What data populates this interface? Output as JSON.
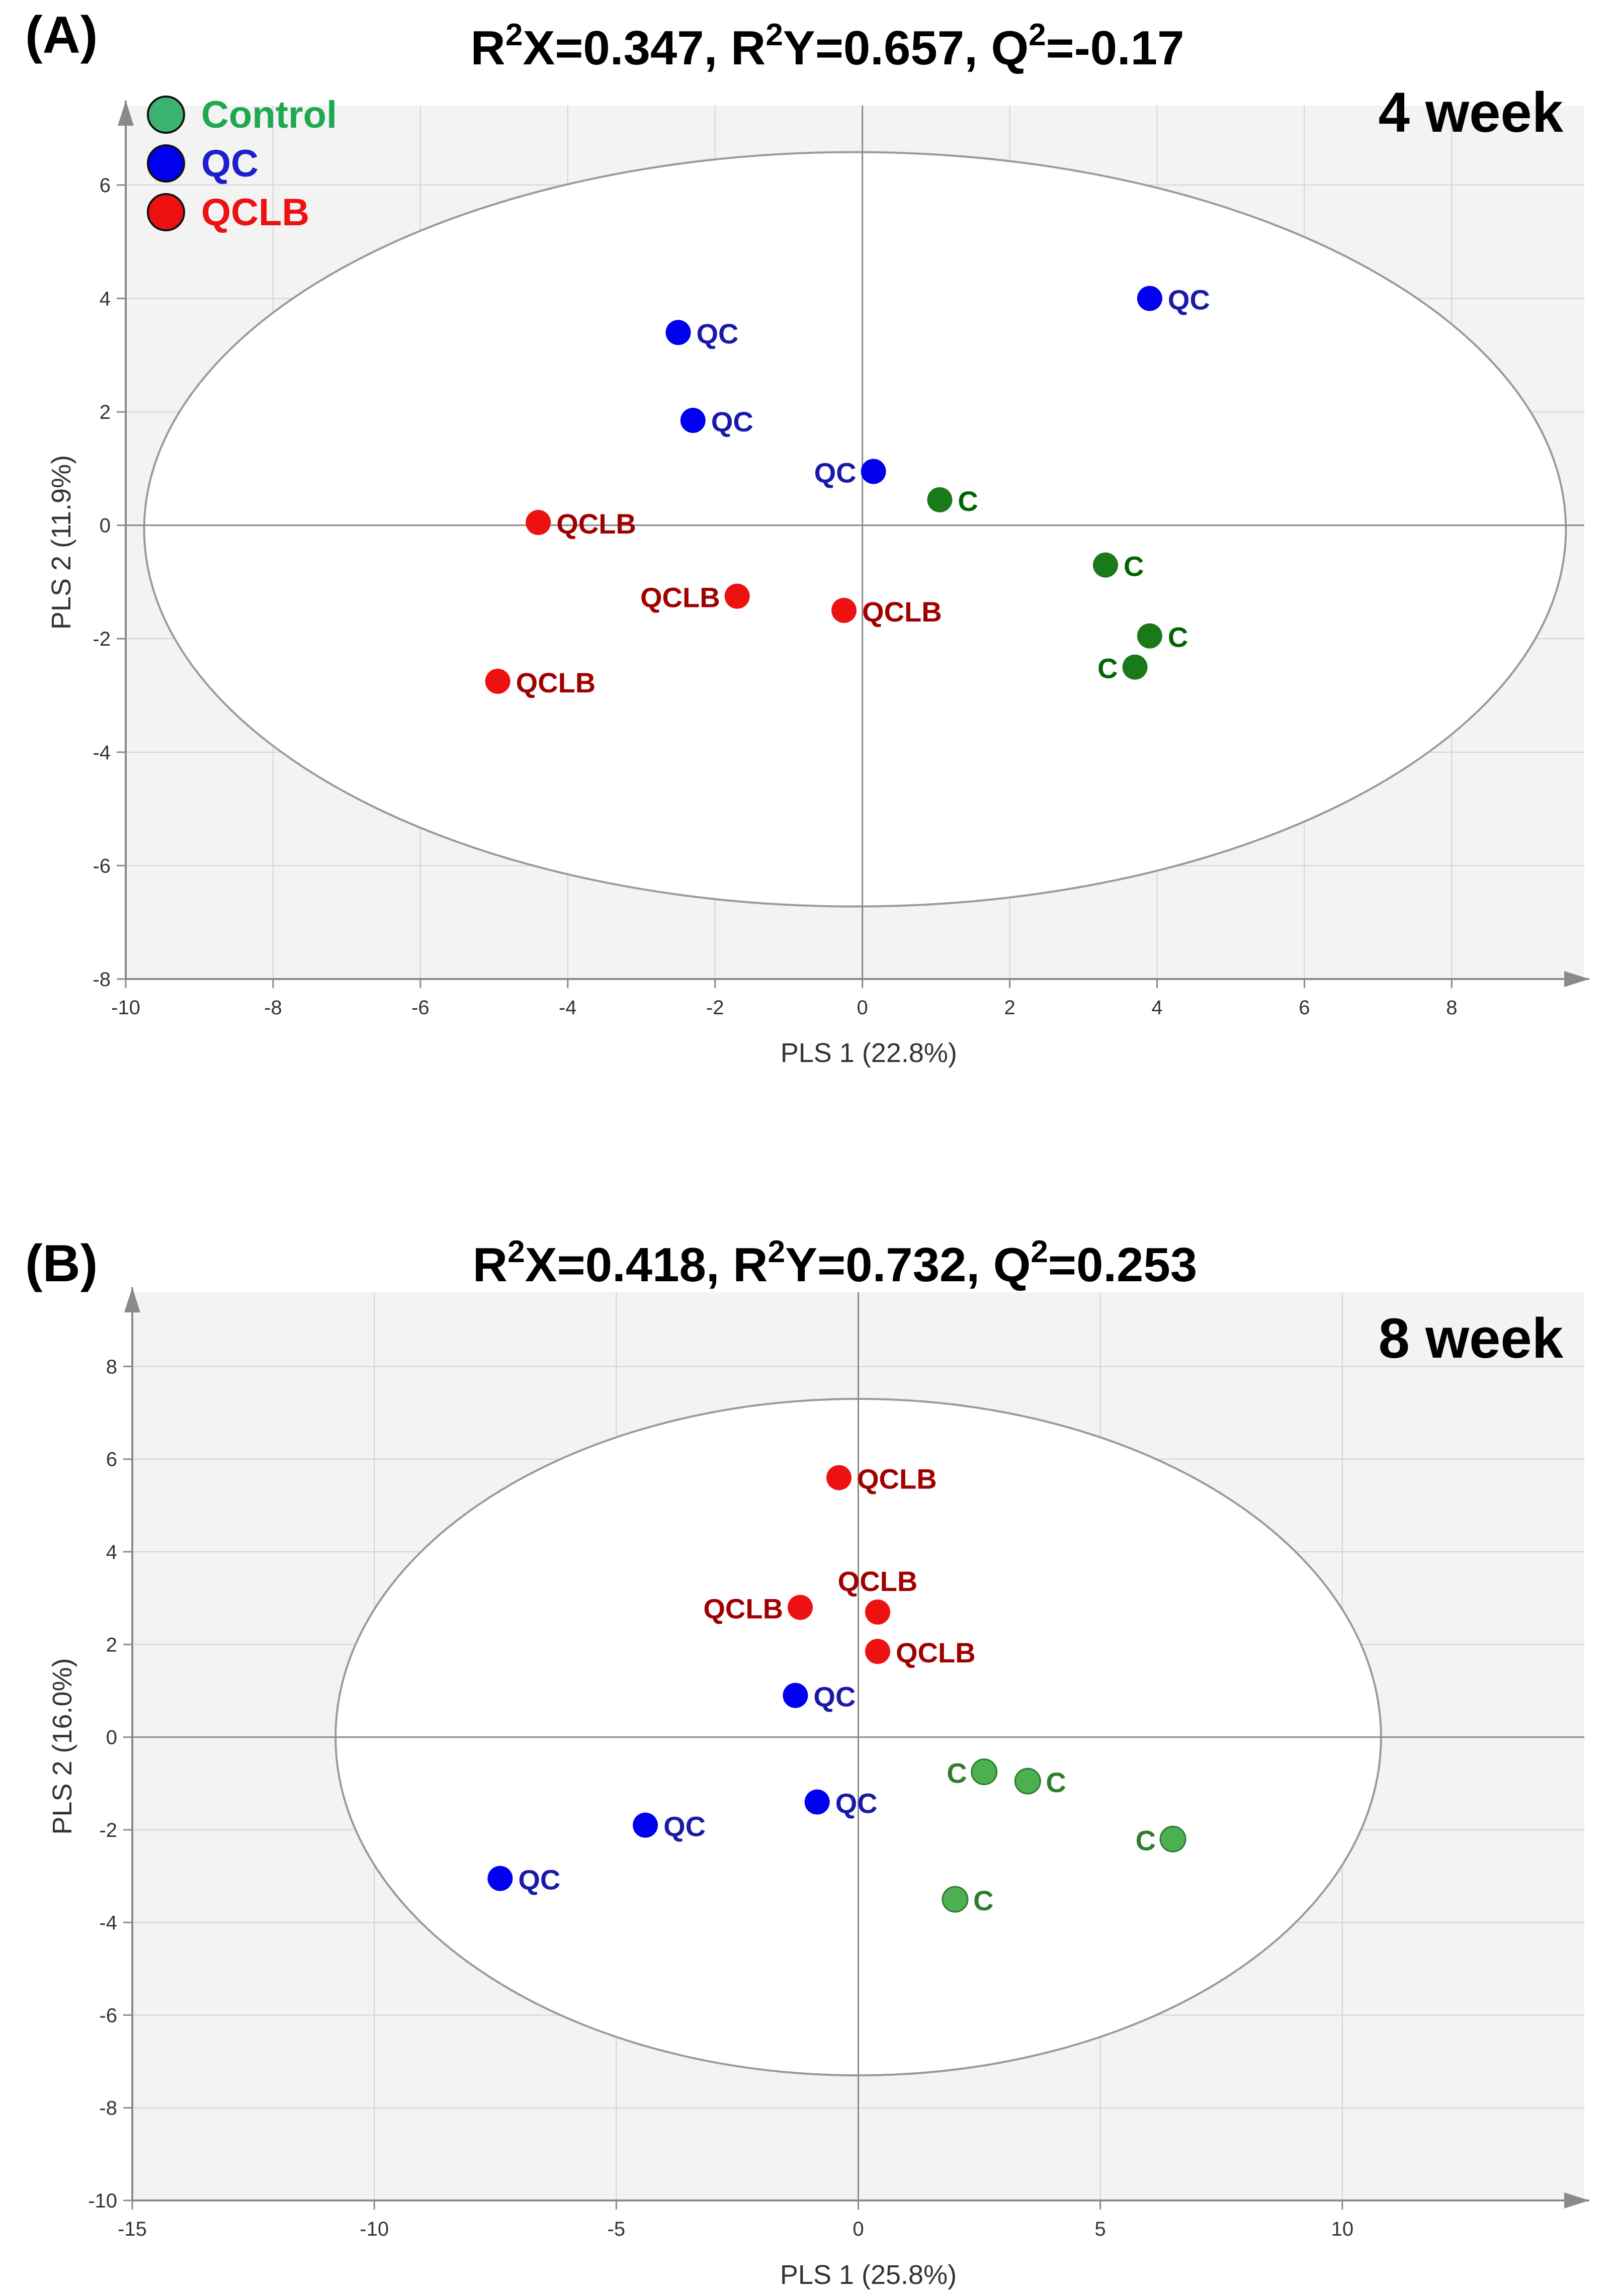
{
  "figure": {
    "panels": [
      {
        "id": "A",
        "panel_label": "(A)",
        "stats": {
          "parts": [
            {
              "base": "R",
              "sup": "2",
              "rest": "X=0.347,"
            },
            {
              "base": "R",
              "sup": "2",
              "rest": "Y=0.657,"
            },
            {
              "base": "Q",
              "sup": "2",
              "rest": "=-0.17"
            }
          ]
        },
        "time_label": "4 week"
      },
      {
        "id": "B",
        "panel_label": "(B)",
        "stats": {
          "parts": [
            {
              "base": "R",
              "sup": "2",
              "rest": "X=0.418,"
            },
            {
              "base": "R",
              "sup": "2",
              "rest": "Y=0.732,"
            },
            {
              "base": "Q",
              "sup": "2",
              "rest": "=0.253"
            }
          ]
        },
        "time_label": "8 week"
      }
    ],
    "legend": [
      {
        "label": "Control",
        "color": "#3cb371",
        "text_color": "#1fa84f"
      },
      {
        "label": "QC",
        "color": "#0000ee",
        "text_color": "#1e1ecc"
      },
      {
        "label": "QCLB",
        "color": "#ee1111",
        "text_color": "#ee1111"
      }
    ],
    "colors": {
      "plot_bg": "#f3f3f3",
      "grid": "#d4d4d4",
      "axis": "#8a8a8a",
      "ellipse": "#9a9a9a",
      "label_control_4w": "#006400",
      "label_control_8w": "#2e7d2e",
      "label_qc": "#1a1aaa",
      "label_qclb": "#a00000",
      "point_control_4w": "#1a7a1a",
      "point_control_8w": "#4caf50"
    }
  },
  "chart_data": [
    {
      "type": "scatter",
      "title": "R2X=0.347, R2Y=0.657, Q2=-0.17",
      "subtitle": "4 week",
      "xlabel": "PLS 1 (22.8%)",
      "ylabel": "PLS 2 (11.9%)",
      "xlim": [
        -10,
        9.8
      ],
      "ylim": [
        -8,
        7.4
      ],
      "xticks": [
        -10,
        -8,
        -6,
        -4,
        -2,
        0,
        2,
        4,
        6,
        8
      ],
      "yticks": [
        -8,
        -6,
        -4,
        -2,
        0,
        2,
        4,
        6
      ],
      "ellipse": {
        "cx": -0.1,
        "cy": -0.07,
        "rx": 9.65,
        "ry": 6.65
      },
      "grid": true,
      "legend_position": "top-left",
      "series": [
        {
          "name": "QC",
          "label": "QC",
          "points": [
            {
              "x": 3.9,
              "y": 4.0,
              "label_side": "right"
            },
            {
              "x": -2.5,
              "y": 3.4,
              "label_side": "right"
            },
            {
              "x": -2.3,
              "y": 1.85,
              "label_side": "right"
            },
            {
              "x": 0.15,
              "y": 0.95,
              "label_side": "left"
            }
          ]
        },
        {
          "name": "Control",
          "label": "C",
          "points": [
            {
              "x": 1.05,
              "y": 0.45,
              "label_side": "right"
            },
            {
              "x": 3.3,
              "y": -0.7,
              "label_side": "right"
            },
            {
              "x": 3.9,
              "y": -1.95,
              "label_side": "right"
            },
            {
              "x": 3.7,
              "y": -2.5,
              "label_side": "left"
            }
          ]
        },
        {
          "name": "QCLB",
          "label": "QCLB",
          "points": [
            {
              "x": -4.4,
              "y": 0.05,
              "label_side": "right"
            },
            {
              "x": -1.7,
              "y": -1.25,
              "label_side": "left"
            },
            {
              "x": -0.25,
              "y": -1.5,
              "label_side": "right"
            },
            {
              "x": -4.95,
              "y": -2.75,
              "label_side": "right"
            }
          ]
        }
      ]
    },
    {
      "type": "scatter",
      "title": "R2X=0.418, R2Y=0.732, Q2=0.253",
      "subtitle": "8 week",
      "xlabel": "PLS 1 (25.8%)",
      "ylabel": "PLS 2 (16.0%)",
      "xlim": [
        -15,
        15
      ],
      "ylim": [
        -10,
        9.6
      ],
      "xticks": [
        -15,
        -10,
        -5,
        0,
        5,
        10
      ],
      "yticks": [
        -10,
        -8,
        -6,
        -4,
        -2,
        0,
        2,
        4,
        6,
        8
      ],
      "ellipse": {
        "cx": 0,
        "cy": 0,
        "rx": 10.8,
        "ry": 7.3
      },
      "grid": true,
      "series": [
        {
          "name": "QCLB",
          "label": "QCLB",
          "points": [
            {
              "x": -0.4,
              "y": 5.6,
              "label_side": "right"
            },
            {
              "x": -1.2,
              "y": 2.8,
              "label_side": "left"
            },
            {
              "x": 0.4,
              "y": 2.7,
              "label_side": "top"
            },
            {
              "x": 0.4,
              "y": 1.85,
              "label_side": "right"
            }
          ]
        },
        {
          "name": "QC",
          "label": "QC",
          "points": [
            {
              "x": -1.3,
              "y": 0.9,
              "label_side": "right"
            },
            {
              "x": -0.85,
              "y": -1.4,
              "label_side": "right"
            },
            {
              "x": -4.4,
              "y": -1.9,
              "label_side": "right"
            },
            {
              "x": -7.4,
              "y": -3.05,
              "label_side": "right"
            }
          ]
        },
        {
          "name": "Control",
          "label": "C",
          "points": [
            {
              "x": 2.6,
              "y": -0.75,
              "label_side": "left"
            },
            {
              "x": 3.5,
              "y": -0.95,
              "label_side": "right"
            },
            {
              "x": 6.5,
              "y": -2.2,
              "label_side": "left"
            },
            {
              "x": 2.0,
              "y": -3.5,
              "label_side": "right"
            }
          ]
        }
      ]
    }
  ]
}
